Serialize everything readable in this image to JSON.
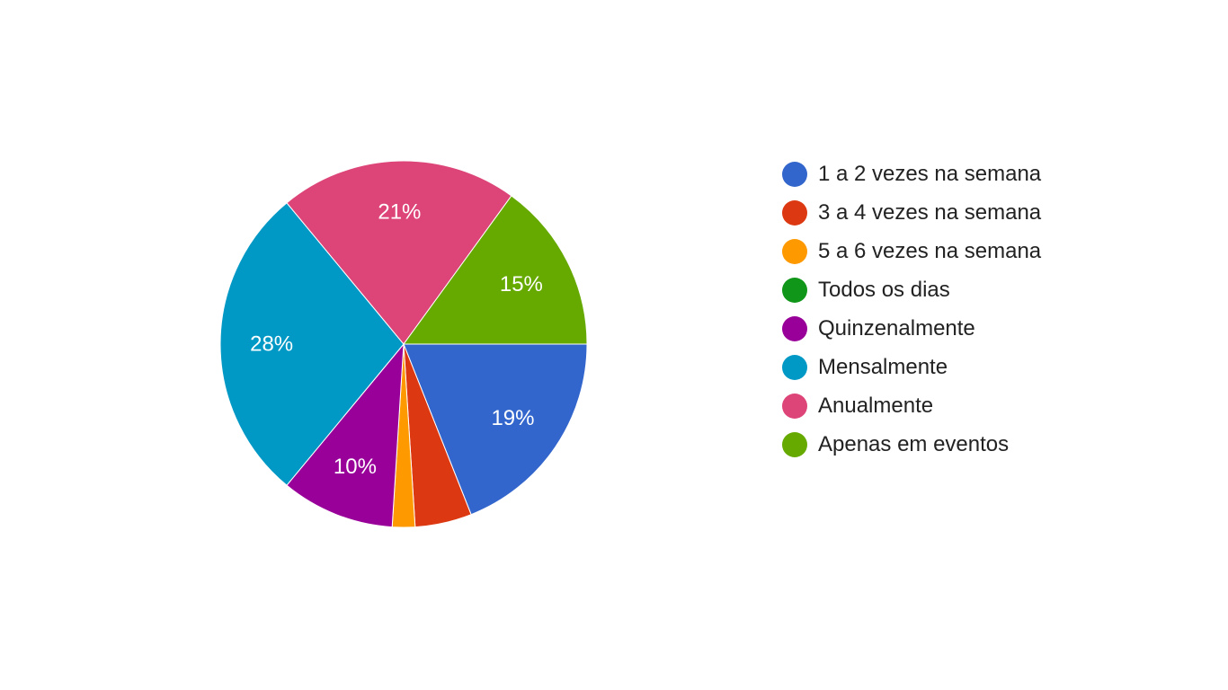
{
  "chart_data": {
    "type": "pie",
    "title": "",
    "legend_position": "right",
    "slices": [
      {
        "label": "1 a 2 vezes na semana",
        "value": 19,
        "display": "19%",
        "color": "#3366cc"
      },
      {
        "label": "3 a 4 vezes na semana",
        "value": 5,
        "display": "",
        "color": "#dc3912"
      },
      {
        "label": "5 a 6 vezes na semana",
        "value": 2,
        "display": "",
        "color": "#ff9900"
      },
      {
        "label": "Todos os dias",
        "value": 0,
        "display": "",
        "color": "#109618"
      },
      {
        "label": "Quinzenalmente",
        "value": 10,
        "display": "10%",
        "color": "#990099"
      },
      {
        "label": "Mensalmente",
        "value": 28,
        "display": "28%",
        "color": "#0099c6"
      },
      {
        "label": "Anualmente",
        "value": 21,
        "display": "21%",
        "color": "#dd4477"
      },
      {
        "label": "Apenas em eventos",
        "value": 15,
        "display": "15%",
        "color": "#66aa00"
      }
    ]
  }
}
